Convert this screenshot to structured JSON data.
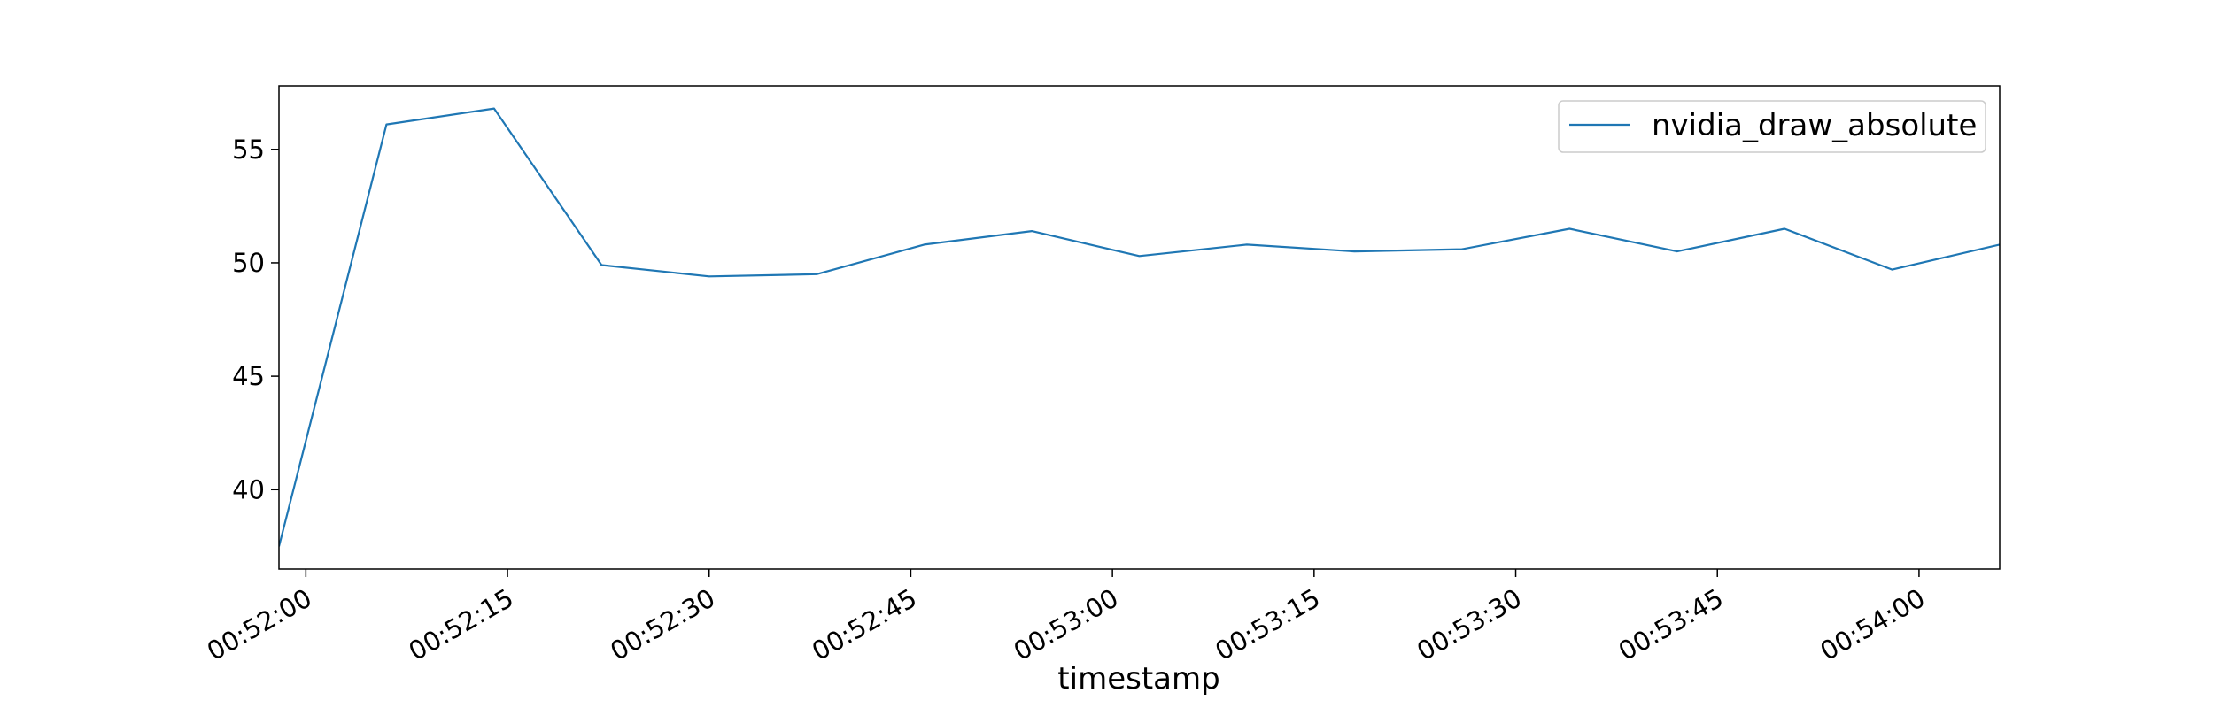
{
  "chart_data": {
    "type": "line",
    "title": "",
    "xlabel": "timestamp",
    "ylabel": "",
    "x_format": "HH:MM:SS",
    "x": [
      "00:51:58",
      "00:52:06",
      "00:52:14",
      "00:52:22",
      "00:52:30",
      "00:52:38",
      "00:52:46",
      "00:52:54",
      "00:53:02",
      "00:53:10",
      "00:53:18",
      "00:53:26",
      "00:53:34",
      "00:53:42",
      "00:53:50",
      "00:53:58",
      "00:54:06"
    ],
    "series": [
      {
        "name": "nvidia_draw_absolute",
        "color": "#1f77b4",
        "values": [
          37.5,
          56.1,
          56.8,
          49.9,
          49.4,
          49.5,
          50.8,
          51.4,
          50.3,
          50.8,
          50.5,
          50.6,
          51.5,
          50.5,
          51.5,
          49.7,
          50.8
        ]
      }
    ],
    "xlim": [
      "00:51:58",
      "00:54:06"
    ],
    "ylim": [
      36.5,
      57.8
    ],
    "x_ticks": [
      "00:52:00",
      "00:52:15",
      "00:52:30",
      "00:52:45",
      "00:53:00",
      "00:53:15",
      "00:53:30",
      "00:53:45",
      "00:54:00"
    ],
    "y_ticks": [
      40,
      45,
      50,
      55
    ],
    "grid": false,
    "legend_position": "upper right"
  }
}
